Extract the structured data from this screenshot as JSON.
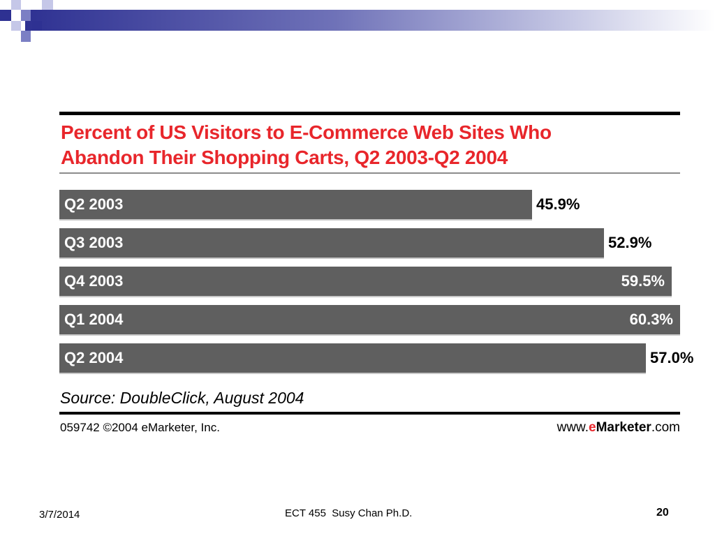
{
  "slide": {
    "date": "3/7/2014",
    "course": "ECT 455  Susy Chan Ph.D.",
    "page_number": "20",
    "accent_color": "#2e3192"
  },
  "chart_data": {
    "type": "bar",
    "orientation": "horizontal",
    "title": "Percent of US Visitors to E-Commerce Web Sites Who Abandon Their Shopping Carts, Q2 2003-Q2 2004",
    "title_lines": [
      "Percent of US Visitors to E-Commerce Web Sites Who",
      "Abandon Their Shopping Carts, Q2 2003-Q2 2004"
    ],
    "categories": [
      "Q2 2003",
      "Q3 2003",
      "Q4 2003",
      "Q1 2004",
      "Q2 2004"
    ],
    "values": [
      45.9,
      52.9,
      59.5,
      60.3,
      57.0
    ],
    "value_labels": [
      "45.9%",
      "52.9%",
      "59.5%",
      "60.3%",
      "57.0%"
    ],
    "xlim": [
      0,
      60.3
    ],
    "grid": false,
    "bar_color": "#5f5f5f",
    "title_color": "#e8262b",
    "source": "Source: DoubleClick, August 2004",
    "footer_id": "059742 ©2004 eMarketer, Inc.",
    "footer_url": {
      "prefix": "www.",
      "brand_e": "e",
      "brand_rest": "Marketer",
      "suffix": ".com"
    }
  }
}
